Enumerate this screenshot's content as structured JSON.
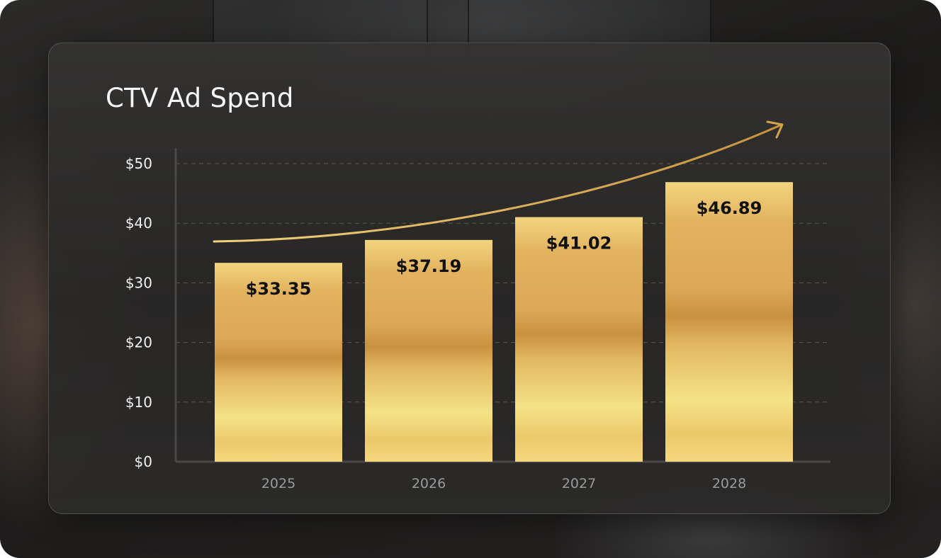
{
  "colors": {
    "bar_gold_light": "#f6dc86",
    "bar_gold_mid": "#e1b45e",
    "bar_gold_dark": "#c9913f",
    "trend_arrow": "#d4a24a",
    "grid": "#5a5856",
    "axis": "#4a4846"
  },
  "chart_data": {
    "type": "bar",
    "title": "CTV Ad Spend",
    "categories": [
      "2025",
      "2026",
      "2027",
      "2028"
    ],
    "values": [
      33.35,
      37.19,
      41.02,
      46.89
    ],
    "data_labels": [
      "$33.35",
      "$37.19",
      "$41.02",
      "$46.89"
    ],
    "ylim": [
      0,
      50
    ],
    "yticks": [
      0,
      10,
      20,
      30,
      40,
      50
    ],
    "ytick_labels": [
      "$0",
      "$10",
      "$20",
      "$30",
      "$40",
      "$50"
    ],
    "grid": true,
    "trend_arrow": true
  }
}
